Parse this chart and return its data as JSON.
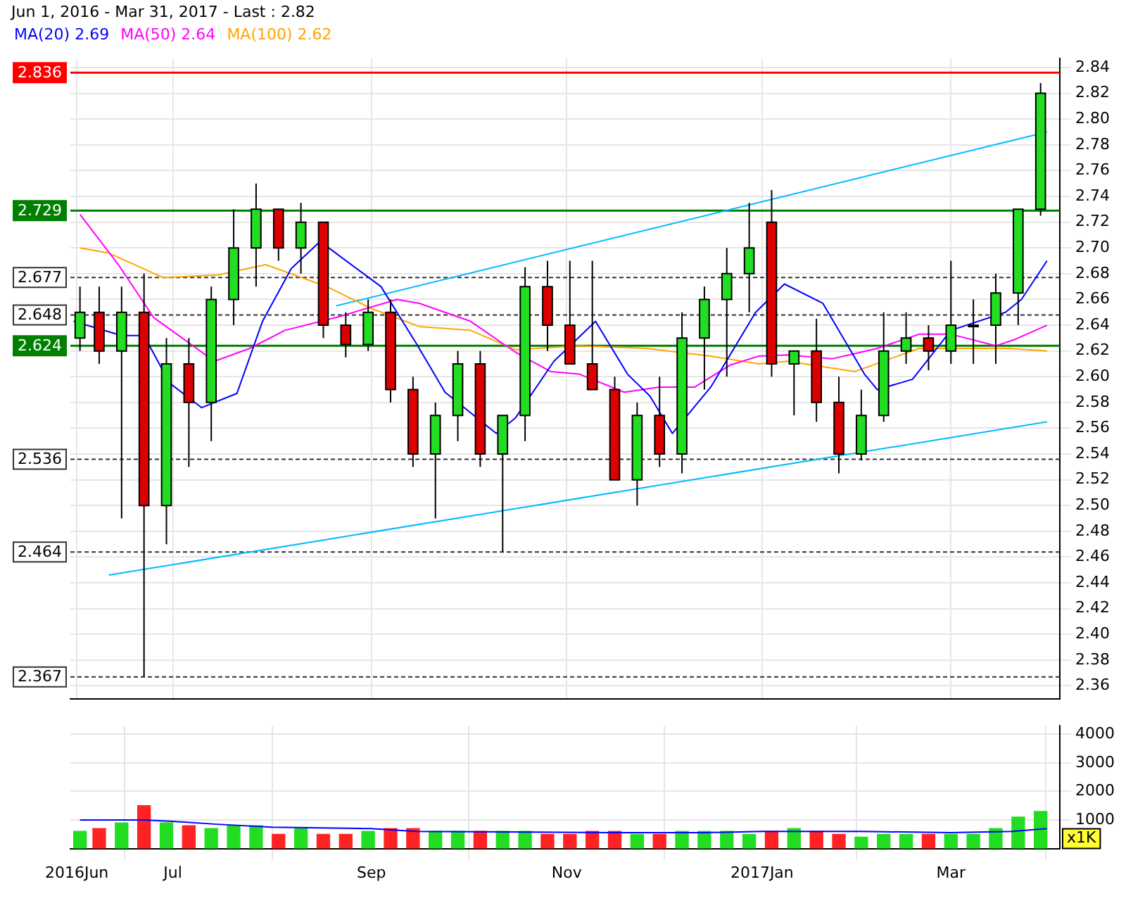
{
  "chart_data": [
    {
      "type": "candlestick",
      "title": "Jun 1, 2016 - Mar 31, 2017 - Last : 2.82",
      "x": [
        "2016-06-02",
        "2016-06-08",
        "2016-06-15",
        "2016-06-22",
        "2016-06-29",
        "2016-07-06",
        "2016-07-13",
        "2016-07-20",
        "2016-07-27",
        "2016-08-03",
        "2016-08-10",
        "2016-08-17",
        "2016-08-24",
        "2016-08-31",
        "2016-09-07",
        "2016-09-14",
        "2016-09-21",
        "2016-09-28",
        "2016-10-05",
        "2016-10-12",
        "2016-10-19",
        "2016-10-26",
        "2016-11-02",
        "2016-11-09",
        "2016-11-16",
        "2016-11-23",
        "2016-11-30",
        "2016-12-07",
        "2016-12-14",
        "2016-12-21",
        "2016-12-28",
        "2017-01-04",
        "2017-01-11",
        "2017-01-18",
        "2017-01-25",
        "2017-02-01",
        "2017-02-08",
        "2017-02-15",
        "2017-02-22",
        "2017-03-01",
        "2017-03-08",
        "2017-03-15",
        "2017-03-22",
        "2017-03-29"
      ],
      "ohlc": [
        [
          2.63,
          2.67,
          2.62,
          2.65
        ],
        [
          2.65,
          2.67,
          2.61,
          2.62
        ],
        [
          2.62,
          2.67,
          2.49,
          2.65
        ],
        [
          2.65,
          2.68,
          2.367,
          2.5
        ],
        [
          2.5,
          2.63,
          2.47,
          2.61
        ],
        [
          2.61,
          2.63,
          2.53,
          2.58
        ],
        [
          2.58,
          2.67,
          2.55,
          2.66
        ],
        [
          2.66,
          2.73,
          2.64,
          2.7
        ],
        [
          2.7,
          2.75,
          2.67,
          2.73
        ],
        [
          2.73,
          2.73,
          2.69,
          2.7
        ],
        [
          2.7,
          2.735,
          2.68,
          2.72
        ],
        [
          2.72,
          2.72,
          2.63,
          2.64
        ],
        [
          2.64,
          2.65,
          2.615,
          2.625
        ],
        [
          2.625,
          2.66,
          2.62,
          2.65
        ],
        [
          2.65,
          2.66,
          2.58,
          2.59
        ],
        [
          2.59,
          2.6,
          2.53,
          2.54
        ],
        [
          2.54,
          2.58,
          2.49,
          2.57
        ],
        [
          2.57,
          2.62,
          2.55,
          2.61
        ],
        [
          2.61,
          2.62,
          2.53,
          2.54
        ],
        [
          2.54,
          2.57,
          2.464,
          2.57
        ],
        [
          2.57,
          2.685,
          2.55,
          2.67
        ],
        [
          2.67,
          2.69,
          2.62,
          2.64
        ],
        [
          2.64,
          2.69,
          2.61,
          2.61
        ],
        [
          2.61,
          2.69,
          2.59,
          2.59
        ],
        [
          2.59,
          2.6,
          2.52,
          2.52
        ],
        [
          2.52,
          2.58,
          2.5,
          2.57
        ],
        [
          2.57,
          2.6,
          2.53,
          2.54
        ],
        [
          2.54,
          2.65,
          2.525,
          2.63
        ],
        [
          2.63,
          2.67,
          2.59,
          2.66
        ],
        [
          2.66,
          2.7,
          2.6,
          2.68
        ],
        [
          2.68,
          2.735,
          2.65,
          2.7
        ],
        [
          2.72,
          2.745,
          2.6,
          2.61
        ],
        [
          2.61,
          2.62,
          2.57,
          2.62
        ],
        [
          2.62,
          2.645,
          2.565,
          2.58
        ],
        [
          2.58,
          2.6,
          2.525,
          2.54
        ],
        [
          2.54,
          2.59,
          2.535,
          2.57
        ],
        [
          2.57,
          2.65,
          2.565,
          2.62
        ],
        [
          2.62,
          2.65,
          2.61,
          2.63
        ],
        [
          2.63,
          2.64,
          2.605,
          2.62
        ],
        [
          2.62,
          2.69,
          2.61,
          2.64
        ],
        [
          2.64,
          2.66,
          2.61,
          2.64
        ],
        [
          2.64,
          2.68,
          2.61,
          2.665
        ],
        [
          2.665,
          2.73,
          2.64,
          2.73
        ],
        [
          2.73,
          2.828,
          2.725,
          2.82
        ]
      ],
      "colors": [
        "#22dd22",
        "#dd0000",
        "#22dd22",
        "#dd0000",
        "#22dd22",
        "#dd0000",
        "#22dd22",
        "#22dd22",
        "#22dd22",
        "#dd0000",
        "#22dd22",
        "#dd0000",
        "#dd0000",
        "#22dd22",
        "#dd0000",
        "#dd0000",
        "#22dd22",
        "#22dd22",
        "#dd0000",
        "#22dd22",
        "#22dd22",
        "#dd0000",
        "#dd0000",
        "#dd0000",
        "#dd0000",
        "#22dd22",
        "#dd0000",
        "#22dd22",
        "#22dd22",
        "#22dd22",
        "#22dd22",
        "#dd0000",
        "#22dd22",
        "#dd0000",
        "#dd0000",
        "#22dd22",
        "#22dd22",
        "#22dd22",
        "#dd0000",
        "#22dd22",
        "#22dd22",
        "#22dd22",
        "#22dd22",
        "#22dd22"
      ],
      "series": [
        {
          "name": "MA(20) 2.69",
          "type": "line",
          "color": "#0000ff",
          "x": [
            "2016-05-31",
            "2016-06-15",
            "2016-06-22",
            "2016-06-30",
            "2016-07-10",
            "2016-07-21",
            "2016-07-29",
            "2016-08-07",
            "2016-08-16",
            "2016-09-04",
            "2016-09-15",
            "2016-09-24",
            "2016-10-10",
            "2016-10-16",
            "2016-10-28",
            "2016-11-10",
            "2016-11-20",
            "2016-11-27",
            "2016-12-04",
            "2016-12-16",
            "2016-12-30",
            "2017-01-08",
            "2017-01-20",
            "2017-02-02",
            "2017-02-06",
            "2017-02-17",
            "2017-03-01",
            "2017-03-18",
            "2017-03-23",
            "2017-03-31"
          ],
          "values": [
            2.643,
            2.632,
            2.632,
            2.595,
            2.576,
            2.587,
            2.643,
            2.684,
            2.705,
            2.67,
            2.626,
            2.588,
            2.556,
            2.568,
            2.612,
            2.643,
            2.602,
            2.585,
            2.556,
            2.592,
            2.65,
            2.672,
            2.657,
            2.602,
            2.59,
            2.598,
            2.636,
            2.65,
            2.66,
            2.69
          ]
        },
        {
          "name": "MA(50) 2.64",
          "type": "line",
          "color": "#ff00ff",
          "x": [
            "2016-06-02",
            "2016-06-14",
            "2016-06-25",
            "2016-07-14",
            "2016-07-25",
            "2016-08-05",
            "2016-08-21",
            "2016-09-09",
            "2016-09-16",
            "2016-10-02",
            "2016-10-16",
            "2016-10-27",
            "2016-11-05",
            "2016-11-19",
            "2016-11-30",
            "2016-12-11",
            "2016-12-22",
            "2016-12-31",
            "2017-01-09",
            "2017-01-23",
            "2017-02-06",
            "2017-02-19",
            "2017-03-01",
            "2017-03-15",
            "2017-03-21",
            "2017-03-31"
          ],
          "values": [
            2.726,
            2.687,
            2.646,
            2.612,
            2.622,
            2.636,
            2.646,
            2.66,
            2.657,
            2.643,
            2.619,
            2.604,
            2.602,
            2.588,
            2.592,
            2.592,
            2.609,
            2.616,
            2.617,
            2.614,
            2.622,
            2.633,
            2.633,
            2.624,
            2.629,
            2.64
          ]
        },
        {
          "name": "MA(100) 2.62",
          "type": "line",
          "color": "#ffa500",
          "x": [
            "2016-06-02",
            "2016-06-11",
            "2016-06-28",
            "2016-07-15",
            "2016-07-30",
            "2016-08-18",
            "2016-09-01",
            "2016-09-16",
            "2016-10-02",
            "2016-10-16",
            "2016-11-05",
            "2016-11-26",
            "2016-12-16",
            "2016-12-31",
            "2017-01-09",
            "2017-01-30",
            "2017-02-19",
            "2017-03-05",
            "2017-03-19",
            "2017-03-31"
          ],
          "values": [
            2.7,
            2.696,
            2.677,
            2.679,
            2.687,
            2.67,
            2.653,
            2.639,
            2.636,
            2.621,
            2.624,
            2.622,
            2.616,
            2.61,
            2.612,
            2.604,
            2.622,
            2.622,
            2.622,
            2.62
          ]
        },
        {
          "type": "line",
          "color": "#00bbff",
          "x": [
            "2016-08-21",
            "2017-03-31"
          ],
          "values": [
            2.655,
            2.79
          ]
        },
        {
          "type": "line",
          "color": "#00bbff",
          "x": [
            "2016-06-11",
            "2017-03-31"
          ],
          "values": [
            2.446,
            2.565
          ]
        }
      ],
      "ref_lines": [
        {
          "axis": "y",
          "value": 2.836,
          "label": "2.836",
          "color": "#ff0000",
          "line_style": "solid"
        },
        {
          "axis": "y",
          "value": 2.729,
          "label": "2.729",
          "color": "#008000",
          "line_style": "solid"
        },
        {
          "axis": "y",
          "value": 2.677,
          "label": "2.677",
          "color": "#333333",
          "line_style": "dashed"
        },
        {
          "axis": "y",
          "value": 2.648,
          "label": "2.648",
          "color": "#333333",
          "line_style": "dashed"
        },
        {
          "axis": "y",
          "value": 2.624,
          "label": "2.624",
          "color": "#008000",
          "line_style": "solid"
        },
        {
          "axis": "y",
          "value": 2.536,
          "label": "2.536",
          "color": "#333333",
          "line_style": "dashed"
        },
        {
          "axis": "y",
          "value": 2.464,
          "label": "2.464",
          "color": "#333333",
          "line_style": "dashed"
        },
        {
          "axis": "y",
          "value": 2.367,
          "label": "2.367",
          "color": "#333333",
          "line_style": "dashed"
        }
      ],
      "xlim": [
        "2016-05-30",
        "2017-04-04"
      ],
      "xticks": [
        {
          "value": "2016-06-01",
          "label": null
        },
        {
          "value": "2016-07-01",
          "label": null
        },
        {
          "value": "2016-09-01",
          "label": null
        },
        {
          "value": "2016-11-01",
          "label": null
        },
        {
          "value": "2017-01-01",
          "label": null
        },
        {
          "value": "2017-03-01",
          "label": null
        }
      ],
      "ylim": [
        2.35,
        2.847
      ],
      "yticks": [
        2.36,
        2.38,
        {
          "value": 2.4,
          "label": "2.40"
        },
        2.42,
        2.44,
        2.46,
        2.48,
        {
          "value": 2.5,
          "label": "2.50"
        },
        2.52,
        2.54,
        2.56,
        2.58,
        {
          "value": 2.6,
          "label": "2.60"
        },
        2.62,
        2.64,
        2.66,
        2.68,
        {
          "value": 2.7,
          "label": "2.70"
        },
        2.72,
        2.74,
        2.76,
        2.78,
        {
          "value": 2.8,
          "label": "2.80"
        },
        2.82,
        2.84
      ],
      "tick_labels": "y",
      "grid": true,
      "legend": "top left"
    },
    {
      "type": "bar",
      "ylabel": "x1K",
      "x": [
        "2016-06-02",
        "2016-06-08",
        "2016-06-15",
        "2016-06-22",
        "2016-06-29",
        "2016-07-06",
        "2016-07-13",
        "2016-07-20",
        "2016-07-27",
        "2016-08-03",
        "2016-08-10",
        "2016-08-17",
        "2016-08-24",
        "2016-08-31",
        "2016-09-07",
        "2016-09-14",
        "2016-09-21",
        "2016-09-28",
        "2016-10-05",
        "2016-10-12",
        "2016-10-19",
        "2016-10-26",
        "2016-11-02",
        "2016-11-09",
        "2016-11-16",
        "2016-11-23",
        "2016-11-30",
        "2016-12-07",
        "2016-12-14",
        "2016-12-21",
        "2016-12-28",
        "2017-01-04",
        "2017-01-11",
        "2017-01-18",
        "2017-01-25",
        "2017-02-01",
        "2017-02-08",
        "2017-02-15",
        "2017-02-22",
        "2017-03-01",
        "2017-03-08",
        "2017-03-15",
        "2017-03-22",
        "2017-03-29"
      ],
      "values": [
        600,
        700,
        900,
        1500,
        900,
        800,
        700,
        800,
        800,
        500,
        700,
        500,
        500,
        600,
        700,
        700,
        600,
        600,
        600,
        600,
        600,
        500,
        500,
        600,
        600,
        500,
        500,
        600,
        600,
        600,
        500,
        600,
        700,
        600,
        500,
        400,
        500,
        500,
        500,
        500,
        500,
        700,
        1100,
        1300
      ],
      "colors": [
        "#22dd22",
        "#ff2222",
        "#22dd22",
        "#ff2222",
        "#22dd22",
        "#ff2222",
        "#22dd22",
        "#22dd22",
        "#22dd22",
        "#ff2222",
        "#22dd22",
        "#ff2222",
        "#ff2222",
        "#22dd22",
        "#ff2222",
        "#ff2222",
        "#22dd22",
        "#22dd22",
        "#ff2222",
        "#22dd22",
        "#22dd22",
        "#ff2222",
        "#ff2222",
        "#ff2222",
        "#ff2222",
        "#22dd22",
        "#ff2222",
        "#22dd22",
        "#22dd22",
        "#22dd22",
        "#22dd22",
        "#ff2222",
        "#22dd22",
        "#ff2222",
        "#ff2222",
        "#22dd22",
        "#22dd22",
        "#22dd22",
        "#ff2222",
        "#22dd22",
        "#22dd22",
        "#22dd22",
        "#22dd22",
        "#22dd22"
      ],
      "series": [
        {
          "type": "line",
          "color": "#0000ff",
          "x": [
            "2016-06-02",
            "2016-06-22",
            "2016-07-01",
            "2016-07-15",
            "2016-08-01",
            "2016-09-01",
            "2016-09-15",
            "2016-10-15",
            "2016-11-15",
            "2016-12-15",
            "2017-01-01",
            "2017-02-01",
            "2017-03-01",
            "2017-03-20",
            "2017-03-31"
          ],
          "values": [
            1000,
            1000,
            950,
            850,
            750,
            700,
            600,
            580,
            560,
            560,
            600,
            600,
            560,
            600,
            700
          ]
        }
      ],
      "xlim": [
        "2016-05-30",
        "2017-04-04"
      ],
      "xticks": [
        {
          "value": "2016-06-01",
          "label": "2016Jun"
        },
        {
          "value": "2016-07-01",
          "label": "Jul"
        },
        {
          "value": "2016-09-01",
          "label": "Sep"
        },
        {
          "value": "2016-11-01",
          "label": "Nov"
        },
        {
          "value": "2017-01-01",
          "label": "2017Jan"
        },
        {
          "value": "2017-03-01",
          "label": "Mar"
        }
      ],
      "ylim": [
        0,
        4300
      ],
      "yticks": [
        1000,
        2000,
        3000,
        4000
      ],
      "grid": true
    }
  ]
}
